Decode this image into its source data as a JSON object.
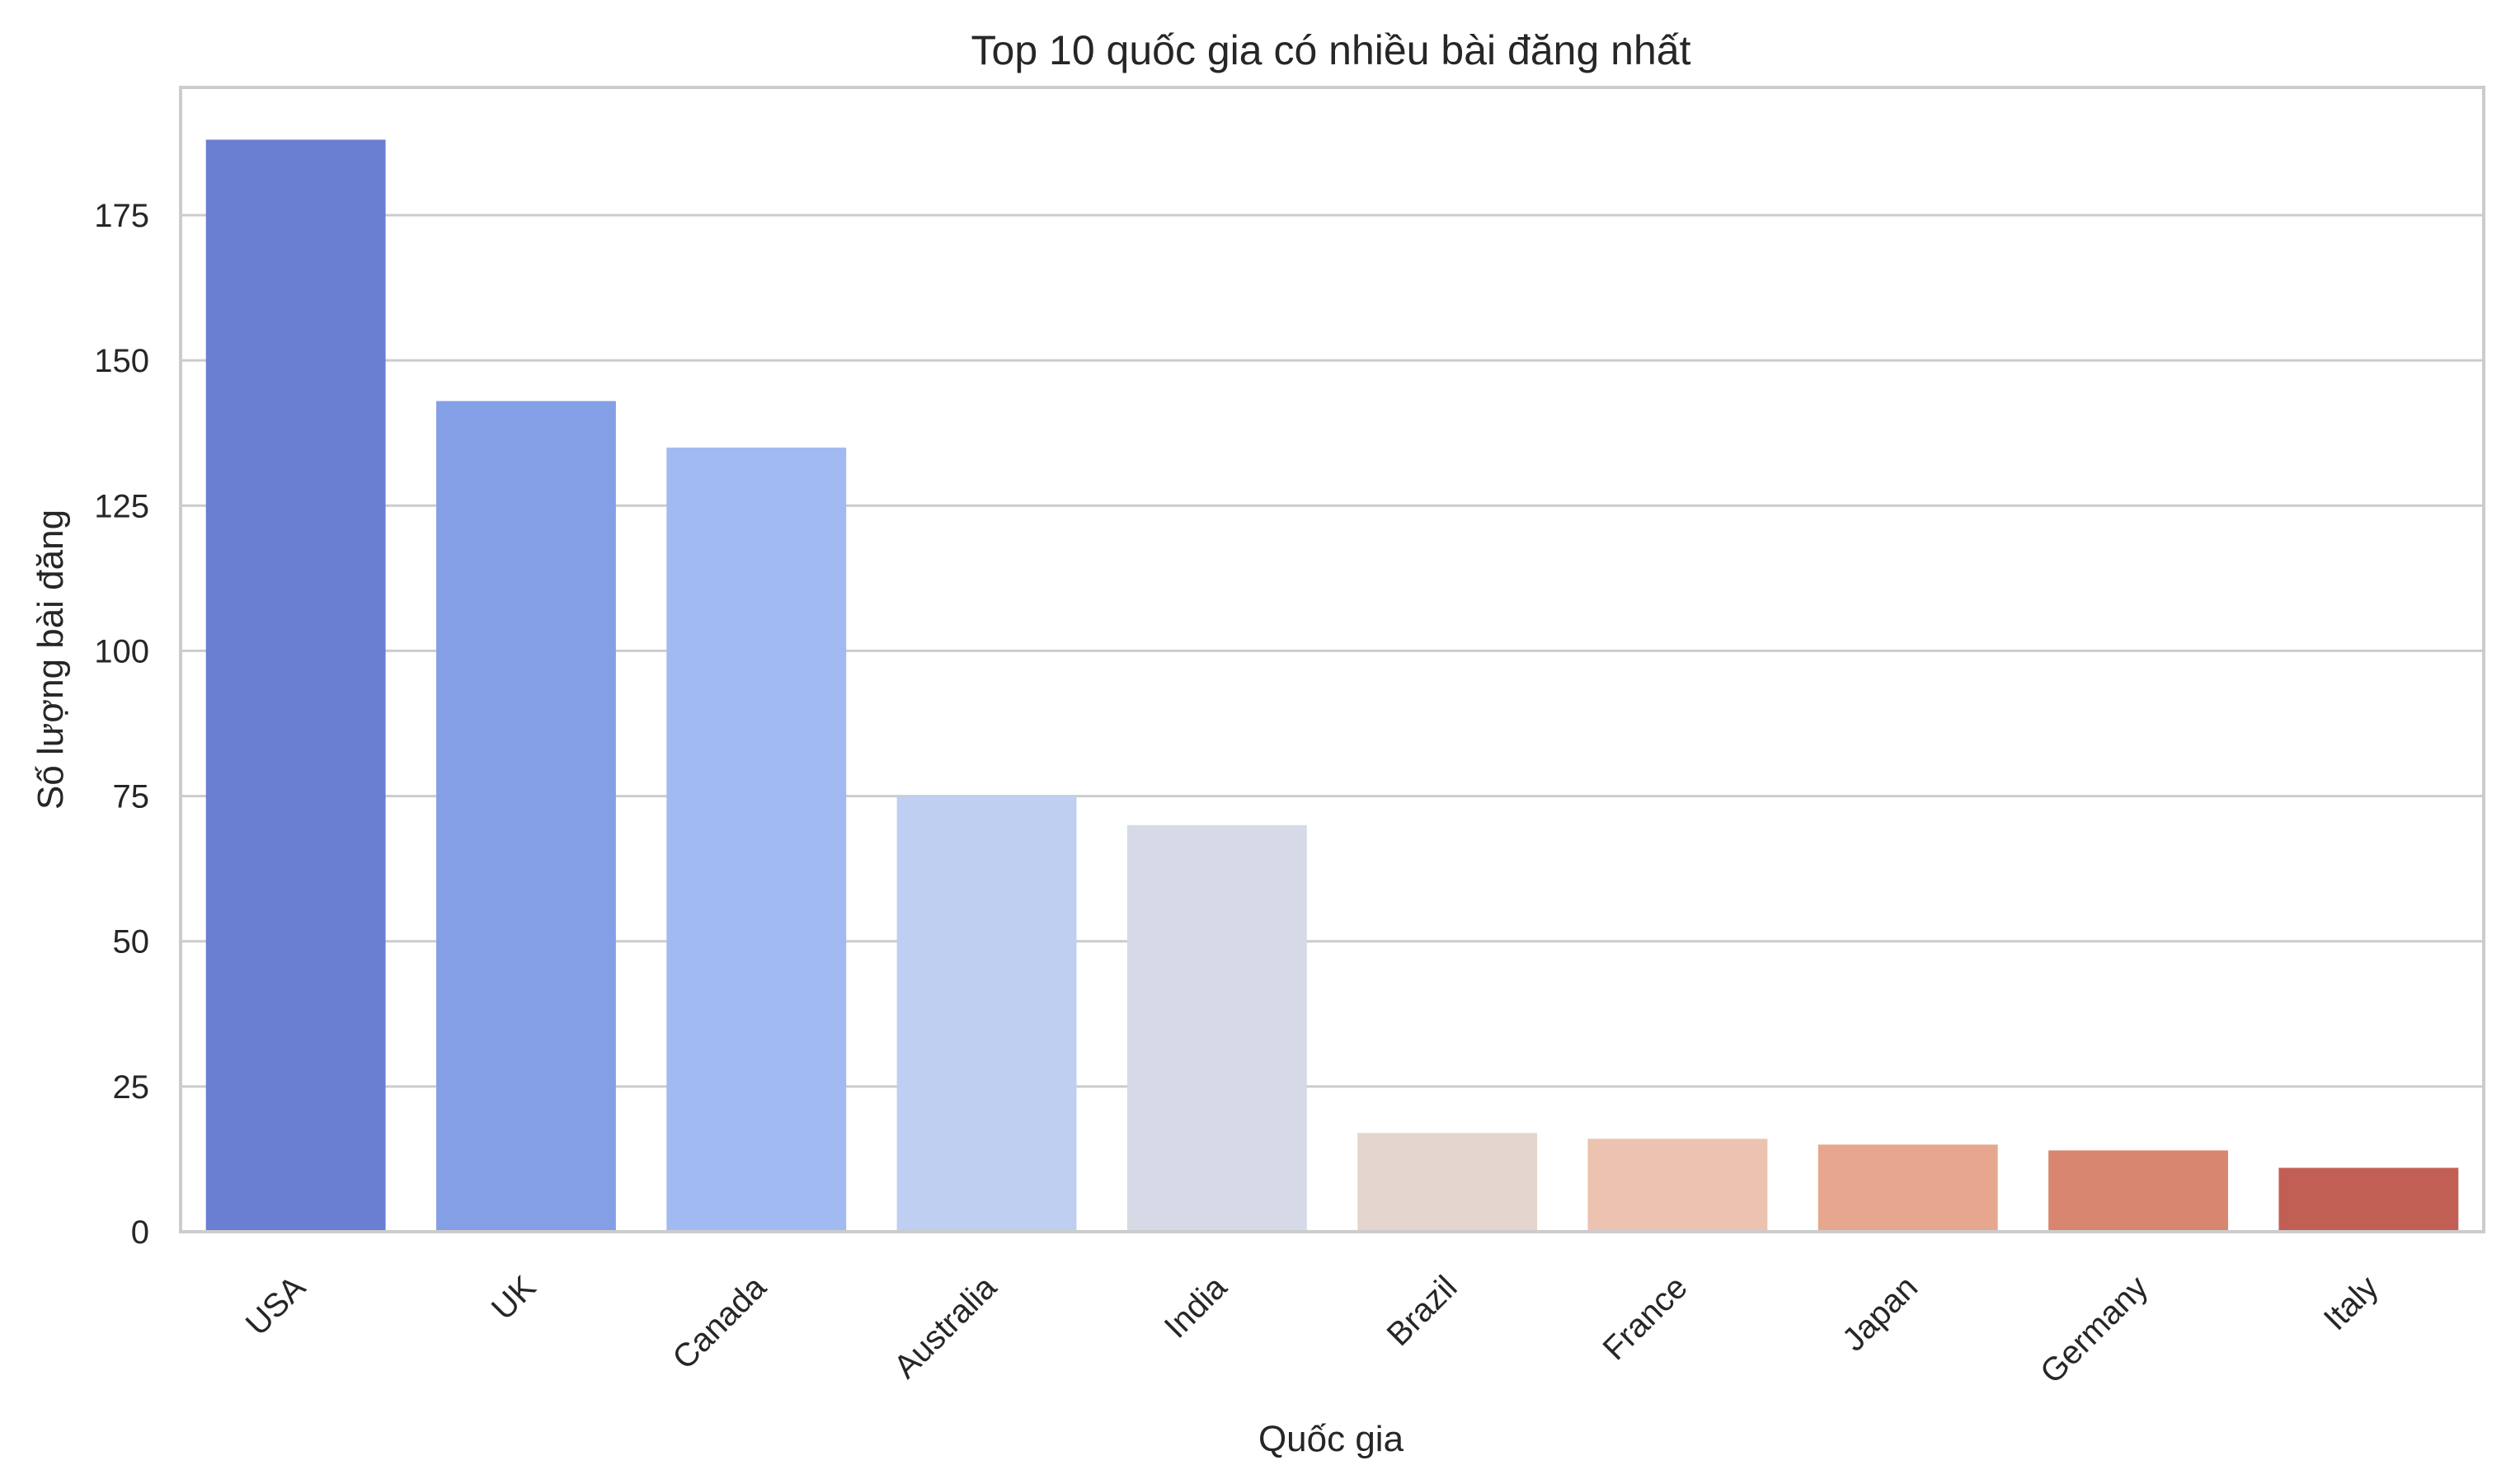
{
  "chart_data": {
    "type": "bar",
    "title": "Top 10 quốc gia có nhiều bài đăng nhất",
    "xlabel": "Quốc gia",
    "ylabel": "Số lượng bài đăng",
    "categories": [
      "USA",
      "UK",
      "Canada",
      "Australia",
      "India",
      "Brazil",
      "France",
      "Japan",
      "Germany",
      "Italy"
    ],
    "values": [
      188,
      143,
      135,
      75,
      70,
      17,
      16,
      15,
      14,
      11
    ],
    "colors": [
      "#6A7ED2",
      "#849FE5",
      "#A2BAF2",
      "#BECFF1",
      "#D5DAE6",
      "#E4D6CF",
      "#ECC3B0",
      "#E6A78E",
      "#D8866F",
      "#C25F55"
    ],
    "yticks": [
      0,
      25,
      50,
      75,
      100,
      125,
      150,
      175
    ],
    "ylim": [
      0,
      197
    ],
    "grid": true,
    "legend": "none"
  }
}
